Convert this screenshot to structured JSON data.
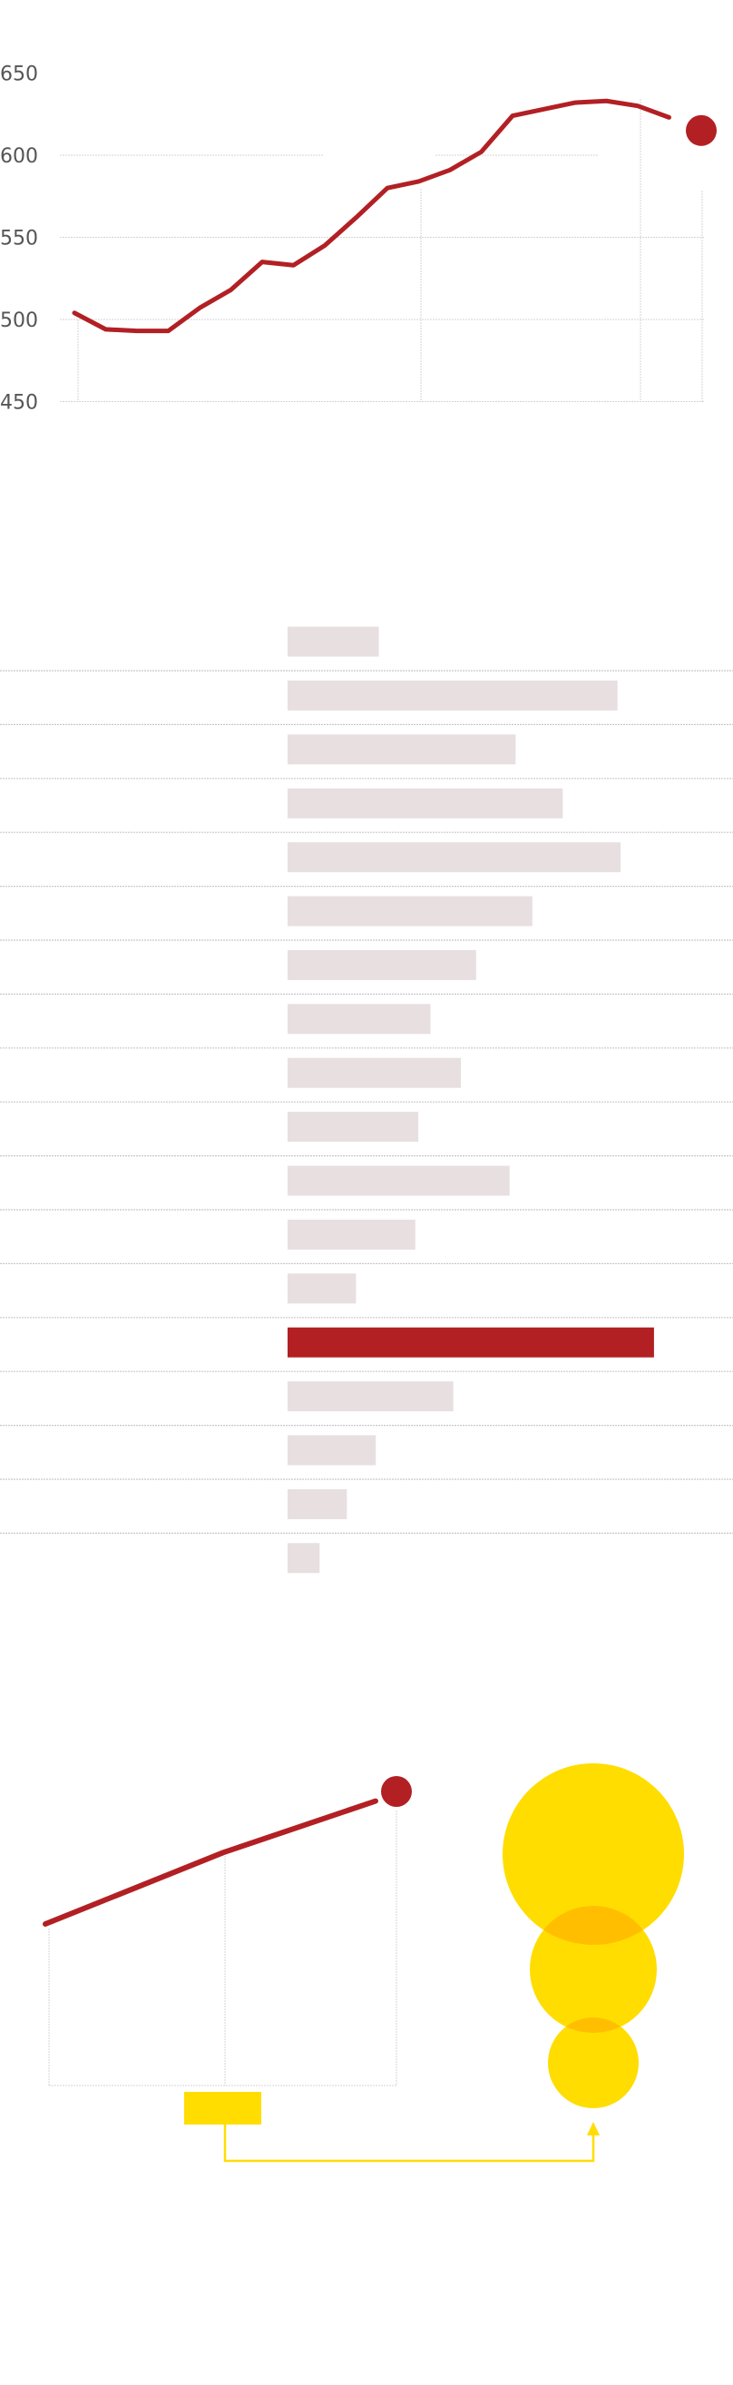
{
  "colors": {
    "accent": "#b22024",
    "bar_muted": "#e7dfe0",
    "highlight": "#ffdd00",
    "grid": "#d4d4d4",
    "tick_text": "#555555"
  },
  "chart_data": [
    {
      "type": "line",
      "title": "",
      "xlabel": "",
      "ylabel": "",
      "ylim": [
        450,
        650
      ],
      "yticks": [
        "650",
        "600",
        "550",
        "500",
        "450"
      ],
      "grid": true,
      "x": [
        0,
        1,
        2,
        3,
        4,
        5,
        6,
        7,
        8,
        9,
        10,
        11,
        12,
        13,
        14,
        15,
        16,
        17,
        18,
        19,
        20
      ],
      "values": [
        504,
        494,
        493,
        493,
        507,
        518,
        535,
        533,
        545,
        562,
        580,
        584,
        591,
        602,
        624,
        628,
        632,
        633,
        630,
        623,
        615
      ],
      "highlight_last_point": true
    },
    {
      "type": "bar",
      "orientation": "horizontal",
      "categories": [
        "",
        "",
        "",
        "",
        "",
        "",
        "",
        "",
        "",
        "",
        "",
        "",
        "",
        "",
        "",
        "",
        "",
        ""
      ],
      "values": [
        60,
        217,
        150,
        181,
        219,
        161,
        124,
        94,
        114,
        86,
        146,
        84,
        45,
        241,
        109,
        58,
        39,
        21
      ],
      "highlight_index": 13
    },
    {
      "type": "line",
      "x": [
        0,
        1,
        2,
        3
      ],
      "values": [
        0,
        0.43,
        0.74,
        0.8
      ],
      "highlight_last_point": true
    },
    {
      "type": "scatter",
      "bubble_sizes": [
        100,
        70,
        50
      ]
    }
  ]
}
